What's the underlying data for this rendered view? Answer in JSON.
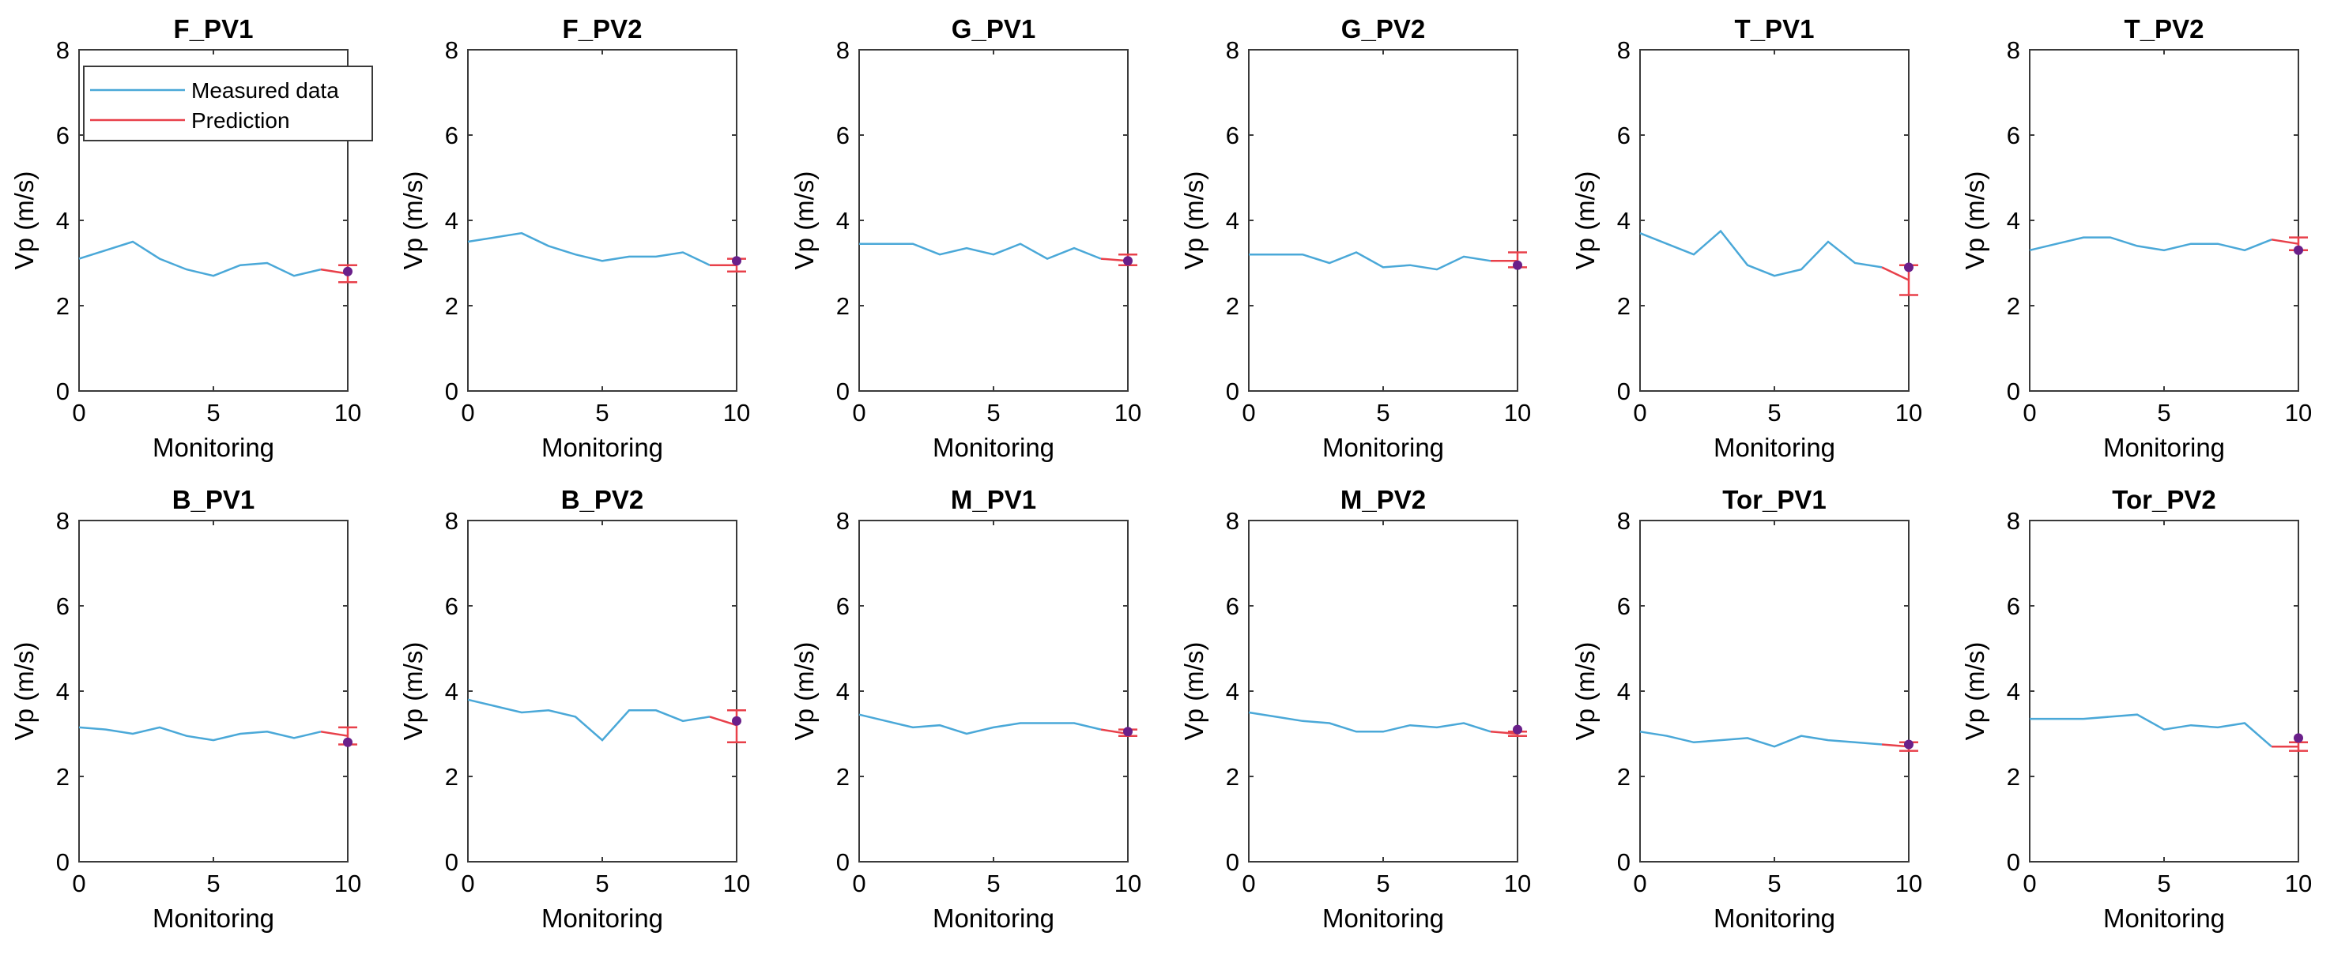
{
  "legend": {
    "measured_label": "Measured data",
    "prediction_label": "Prediction",
    "placement": "top-left of first panel"
  },
  "colors": {
    "measured": "#4aa8d8",
    "prediction": "#e8404a",
    "observed_point": "#6a1f8a"
  },
  "chart_data": [
    {
      "type": "line",
      "title": "F_PV1",
      "xlabel": "Monitoring",
      "ylabel": "Vp (m/s)",
      "xlim": [
        0,
        10
      ],
      "ylim": [
        0,
        8
      ],
      "xticks": [
        0,
        5,
        10
      ],
      "yticks": [
        0,
        2,
        4,
        6,
        8
      ],
      "x": [
        0,
        1,
        2,
        3,
        4,
        5,
        6,
        7,
        8,
        9
      ],
      "measured": [
        3.1,
        3.3,
        3.5,
        3.1,
        2.85,
        2.7,
        2.95,
        3.0,
        2.7,
        2.85
      ],
      "prediction": {
        "x": [
          9,
          10
        ],
        "y": [
          2.85,
          2.75
        ],
        "err_low": 2.55,
        "err_high": 2.95
      },
      "observed": 2.8
    },
    {
      "type": "line",
      "title": "F_PV2",
      "xlabel": "Monitoring",
      "ylabel": "Vp (m/s)",
      "xlim": [
        0,
        10
      ],
      "ylim": [
        0,
        8
      ],
      "xticks": [
        0,
        5,
        10
      ],
      "yticks": [
        0,
        2,
        4,
        6,
        8
      ],
      "x": [
        0,
        1,
        2,
        3,
        4,
        5,
        6,
        7,
        8,
        9
      ],
      "measured": [
        3.5,
        3.6,
        3.7,
        3.4,
        3.2,
        3.05,
        3.15,
        3.15,
        3.25,
        2.95
      ],
      "prediction": {
        "x": [
          9,
          10
        ],
        "y": [
          2.95,
          2.95
        ],
        "err_low": 2.8,
        "err_high": 3.1
      },
      "observed": 3.05
    },
    {
      "type": "line",
      "title": "G_PV1",
      "xlabel": "Monitoring",
      "ylabel": "Vp (m/s)",
      "xlim": [
        0,
        10
      ],
      "ylim": [
        0,
        8
      ],
      "xticks": [
        0,
        5,
        10
      ],
      "yticks": [
        0,
        2,
        4,
        6,
        8
      ],
      "x": [
        0,
        1,
        2,
        3,
        4,
        5,
        6,
        7,
        8,
        9
      ],
      "measured": [
        3.45,
        3.45,
        3.45,
        3.2,
        3.35,
        3.2,
        3.45,
        3.1,
        3.35,
        3.1
      ],
      "prediction": {
        "x": [
          9,
          10
        ],
        "y": [
          3.1,
          3.05
        ],
        "err_low": 2.95,
        "err_high": 3.2
      },
      "observed": 3.05
    },
    {
      "type": "line",
      "title": "G_PV2",
      "xlabel": "Monitoring",
      "ylabel": "Vp (m/s)",
      "xlim": [
        0,
        10
      ],
      "ylim": [
        0,
        8
      ],
      "xticks": [
        0,
        5,
        10
      ],
      "yticks": [
        0,
        2,
        4,
        6,
        8
      ],
      "x": [
        0,
        1,
        2,
        3,
        4,
        5,
        6,
        7,
        8,
        9
      ],
      "measured": [
        3.2,
        3.2,
        3.2,
        3.0,
        3.25,
        2.9,
        2.95,
        2.85,
        3.15,
        3.05
      ],
      "prediction": {
        "x": [
          9,
          10
        ],
        "y": [
          3.05,
          3.05
        ],
        "err_low": 2.9,
        "err_high": 3.25
      },
      "observed": 2.95
    },
    {
      "type": "line",
      "title": "T_PV1",
      "xlabel": "Monitoring",
      "ylabel": "Vp (m/s)",
      "xlim": [
        0,
        10
      ],
      "ylim": [
        0,
        8
      ],
      "xticks": [
        0,
        5,
        10
      ],
      "yticks": [
        0,
        2,
        4,
        6,
        8
      ],
      "x": [
        0,
        1,
        2,
        3,
        4,
        5,
        6,
        7,
        8,
        9
      ],
      "measured": [
        3.7,
        3.45,
        3.2,
        3.75,
        2.95,
        2.7,
        2.85,
        3.5,
        3.0,
        2.9
      ],
      "prediction": {
        "x": [
          9,
          10
        ],
        "y": [
          2.9,
          2.6
        ],
        "err_low": 2.25,
        "err_high": 2.95
      },
      "observed": 2.9
    },
    {
      "type": "line",
      "title": "T_PV2",
      "xlabel": "Monitoring",
      "ylabel": "Vp (m/s)",
      "xlim": [
        0,
        10
      ],
      "ylim": [
        0,
        8
      ],
      "xticks": [
        0,
        5,
        10
      ],
      "yticks": [
        0,
        2,
        4,
        6,
        8
      ],
      "x": [
        0,
        1,
        2,
        3,
        4,
        5,
        6,
        7,
        8,
        9
      ],
      "measured": [
        3.3,
        3.45,
        3.6,
        3.6,
        3.4,
        3.3,
        3.45,
        3.45,
        3.3,
        3.55
      ],
      "prediction": {
        "x": [
          9,
          10
        ],
        "y": [
          3.55,
          3.45
        ],
        "err_low": 3.3,
        "err_high": 3.6
      },
      "observed": 3.3
    },
    {
      "type": "line",
      "title": "B_PV1",
      "xlabel": "Monitoring",
      "ylabel": "Vp (m/s)",
      "xlim": [
        0,
        10
      ],
      "ylim": [
        0,
        8
      ],
      "xticks": [
        0,
        5,
        10
      ],
      "yticks": [
        0,
        2,
        4,
        6,
        8
      ],
      "x": [
        0,
        1,
        2,
        3,
        4,
        5,
        6,
        7,
        8,
        9
      ],
      "measured": [
        3.15,
        3.1,
        3.0,
        3.15,
        2.95,
        2.85,
        3.0,
        3.05,
        2.9,
        3.05
      ],
      "prediction": {
        "x": [
          9,
          10
        ],
        "y": [
          3.05,
          2.95
        ],
        "err_low": 2.75,
        "err_high": 3.15
      },
      "observed": 2.8
    },
    {
      "type": "line",
      "title": "B_PV2",
      "xlabel": "Monitoring",
      "ylabel": "Vp (m/s)",
      "xlim": [
        0,
        10
      ],
      "ylim": [
        0,
        8
      ],
      "xticks": [
        0,
        5,
        10
      ],
      "yticks": [
        0,
        2,
        4,
        6,
        8
      ],
      "x": [
        0,
        1,
        2,
        3,
        4,
        5,
        6,
        7,
        8,
        9
      ],
      "measured": [
        3.8,
        3.65,
        3.5,
        3.55,
        3.4,
        2.85,
        3.55,
        3.55,
        3.3,
        3.4
      ],
      "prediction": {
        "x": [
          9,
          10
        ],
        "y": [
          3.4,
          3.2
        ],
        "err_low": 2.8,
        "err_high": 3.55
      },
      "observed": 3.3
    },
    {
      "type": "line",
      "title": "M_PV1",
      "xlabel": "Monitoring",
      "ylabel": "Vp (m/s)",
      "xlim": [
        0,
        10
      ],
      "ylim": [
        0,
        8
      ],
      "xticks": [
        0,
        5,
        10
      ],
      "yticks": [
        0,
        2,
        4,
        6,
        8
      ],
      "x": [
        0,
        1,
        2,
        3,
        4,
        5,
        6,
        7,
        8,
        9
      ],
      "measured": [
        3.45,
        3.3,
        3.15,
        3.2,
        3.0,
        3.15,
        3.25,
        3.25,
        3.25,
        3.1
      ],
      "prediction": {
        "x": [
          9,
          10
        ],
        "y": [
          3.1,
          3.0
        ],
        "err_low": 2.95,
        "err_high": 3.1
      },
      "observed": 3.05
    },
    {
      "type": "line",
      "title": "M_PV2",
      "xlabel": "Monitoring",
      "ylabel": "Vp (m/s)",
      "xlim": [
        0,
        10
      ],
      "ylim": [
        0,
        8
      ],
      "xticks": [
        0,
        5,
        10
      ],
      "yticks": [
        0,
        2,
        4,
        6,
        8
      ],
      "x": [
        0,
        1,
        2,
        3,
        4,
        5,
        6,
        7,
        8,
        9
      ],
      "measured": [
        3.5,
        3.4,
        3.3,
        3.25,
        3.05,
        3.05,
        3.2,
        3.15,
        3.25,
        3.05
      ],
      "prediction": {
        "x": [
          9,
          10
        ],
        "y": [
          3.05,
          3.0
        ],
        "err_low": 2.95,
        "err_high": 3.05
      },
      "observed": 3.1
    },
    {
      "type": "line",
      "title": "Tor_PV1",
      "xlabel": "Monitoring",
      "ylabel": "Vp (m/s)",
      "xlim": [
        0,
        10
      ],
      "ylim": [
        0,
        8
      ],
      "xticks": [
        0,
        5,
        10
      ],
      "yticks": [
        0,
        2,
        4,
        6,
        8
      ],
      "x": [
        0,
        1,
        2,
        3,
        4,
        5,
        6,
        7,
        8,
        9
      ],
      "measured": [
        3.05,
        2.95,
        2.8,
        2.85,
        2.9,
        2.7,
        2.95,
        2.85,
        2.8,
        2.75
      ],
      "prediction": {
        "x": [
          9,
          10
        ],
        "y": [
          2.75,
          2.7
        ],
        "err_low": 2.6,
        "err_high": 2.8
      },
      "observed": 2.75
    },
    {
      "type": "line",
      "title": "Tor_PV2",
      "xlabel": "Monitoring",
      "ylabel": "Vp (m/s)",
      "xlim": [
        0,
        10
      ],
      "ylim": [
        0,
        8
      ],
      "xticks": [
        0,
        5,
        10
      ],
      "yticks": [
        0,
        2,
        4,
        6,
        8
      ],
      "x": [
        0,
        1,
        2,
        3,
        4,
        5,
        6,
        7,
        8,
        9
      ],
      "measured": [
        3.35,
        3.35,
        3.35,
        3.4,
        3.45,
        3.1,
        3.2,
        3.15,
        3.25,
        2.7
      ],
      "prediction": {
        "x": [
          9,
          10
        ],
        "y": [
          2.7,
          2.7
        ],
        "err_low": 2.6,
        "err_high": 2.8
      },
      "observed": 2.9
    }
  ]
}
